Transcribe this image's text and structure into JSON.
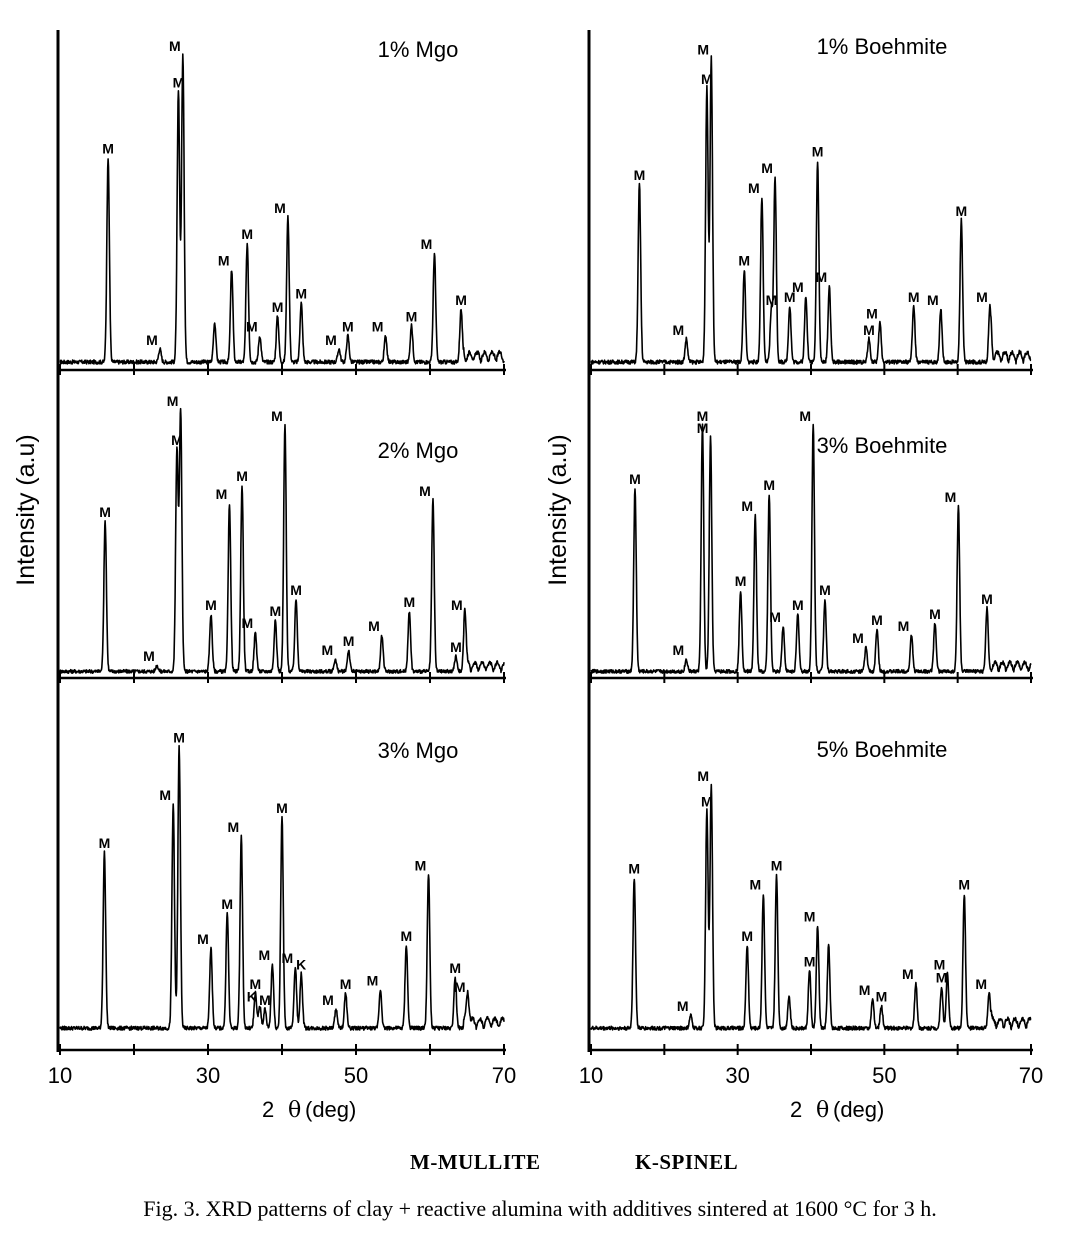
{
  "figure": {
    "ylabel": "Intensity  (a.u)",
    "xlabel_prefix": "2",
    "xlabel_symbol": "θ",
    "xlabel_unit": "(deg)",
    "x_ticks": [
      "10",
      "30",
      "50",
      "70"
    ],
    "legend": [
      "M-MULLITE",
      "K-SPINEL"
    ],
    "caption": "Fig. 3. XRD patterns of clay + reactive alumina with additives sintered at 1600 °C for 3 h."
  },
  "chart_data": [
    {
      "type": "line",
      "title": "1% Mgo",
      "xlim": [
        10,
        70
      ],
      "peaks": [
        {
          "x": 16.5,
          "h": 0.62,
          "label": "M"
        },
        {
          "x": 23.5,
          "h": 0.04,
          "label": "M"
        },
        {
          "x": 26.0,
          "h": 0.82,
          "label": "M"
        },
        {
          "x": 26.6,
          "h": 0.93,
          "label": "M"
        },
        {
          "x": 30.9,
          "h": 0.12,
          "label": ""
        },
        {
          "x": 33.2,
          "h": 0.28,
          "label": "M"
        },
        {
          "x": 35.3,
          "h": 0.36,
          "label": "M"
        },
        {
          "x": 37.0,
          "h": 0.08,
          "label": "M"
        },
        {
          "x": 39.4,
          "h": 0.14,
          "label": "M"
        },
        {
          "x": 40.8,
          "h": 0.44,
          "label": "M"
        },
        {
          "x": 42.6,
          "h": 0.18,
          "label": "M"
        },
        {
          "x": 47.7,
          "h": 0.04,
          "label": "M"
        },
        {
          "x": 48.9,
          "h": 0.08,
          "label": "M"
        },
        {
          "x": 54.0,
          "h": 0.08,
          "label": "M"
        },
        {
          "x": 57.5,
          "h": 0.11,
          "label": "M"
        },
        {
          "x": 60.6,
          "h": 0.33,
          "label": "M"
        },
        {
          "x": 64.2,
          "h": 0.16,
          "label": "M"
        }
      ]
    },
    {
      "type": "line",
      "title": "2% Mgo",
      "xlim": [
        10,
        70
      ],
      "peaks": [
        {
          "x": 16.1,
          "h": 0.5,
          "label": "M"
        },
        {
          "x": 23.1,
          "h": 0.02,
          "label": "M"
        },
        {
          "x": 25.8,
          "h": 0.74,
          "label": "M"
        },
        {
          "x": 26.3,
          "h": 0.87,
          "label": "M"
        },
        {
          "x": 30.4,
          "h": 0.19,
          "label": "M"
        },
        {
          "x": 32.9,
          "h": 0.56,
          "label": "M"
        },
        {
          "x": 34.6,
          "h": 0.62,
          "label": "M"
        },
        {
          "x": 36.4,
          "h": 0.13,
          "label": "M"
        },
        {
          "x": 39.1,
          "h": 0.17,
          "label": "M"
        },
        {
          "x": 40.4,
          "h": 0.82,
          "label": "M"
        },
        {
          "x": 41.9,
          "h": 0.24,
          "label": "M"
        },
        {
          "x": 47.2,
          "h": 0.04,
          "label": "M"
        },
        {
          "x": 49.0,
          "h": 0.07,
          "label": "M"
        },
        {
          "x": 53.5,
          "h": 0.12,
          "label": "M"
        },
        {
          "x": 57.2,
          "h": 0.2,
          "label": "M"
        },
        {
          "x": 60.4,
          "h": 0.57,
          "label": "M"
        },
        {
          "x": 63.5,
          "h": 0.05,
          "label": "M"
        },
        {
          "x": 64.7,
          "h": 0.19,
          "label": "M"
        }
      ]
    },
    {
      "type": "line",
      "title": "3% Mgo",
      "xlim": [
        10,
        70
      ],
      "peaks": [
        {
          "x": 16.0,
          "h": 0.55,
          "label": "M"
        },
        {
          "x": 25.3,
          "h": 0.7,
          "label": "M"
        },
        {
          "x": 26.1,
          "h": 0.88,
          "label": "M"
        },
        {
          "x": 30.4,
          "h": 0.25,
          "label": "M"
        },
        {
          "x": 32.6,
          "h": 0.36,
          "label": "M"
        },
        {
          "x": 34.5,
          "h": 0.6,
          "label": "M"
        },
        {
          "x": 36.4,
          "h": 0.11,
          "label": "M"
        },
        {
          "x": 37.0,
          "h": 0.07,
          "label": "K"
        },
        {
          "x": 37.7,
          "h": 0.06,
          "label": "M"
        },
        {
          "x": 38.7,
          "h": 0.2,
          "label": "M"
        },
        {
          "x": 40.0,
          "h": 0.66,
          "label": "M"
        },
        {
          "x": 41.8,
          "h": 0.19,
          "label": "M"
        },
        {
          "x": 42.6,
          "h": 0.17,
          "label": "K"
        },
        {
          "x": 47.3,
          "h": 0.06,
          "label": "M"
        },
        {
          "x": 48.6,
          "h": 0.11,
          "label": "M"
        },
        {
          "x": 53.3,
          "h": 0.12,
          "label": "M"
        },
        {
          "x": 56.8,
          "h": 0.26,
          "label": "M"
        },
        {
          "x": 59.8,
          "h": 0.48,
          "label": "M"
        },
        {
          "x": 63.4,
          "h": 0.16,
          "label": "M"
        },
        {
          "x": 65.1,
          "h": 0.1,
          "label": "M"
        }
      ]
    },
    {
      "type": "line",
      "title": "1% Boehmite",
      "xlim": [
        10,
        70
      ],
      "peaks": [
        {
          "x": 16.6,
          "h": 0.54,
          "label": "M"
        },
        {
          "x": 23.0,
          "h": 0.07,
          "label": "M"
        },
        {
          "x": 25.8,
          "h": 0.83,
          "label": "M"
        },
        {
          "x": 26.4,
          "h": 0.92,
          "label": "M"
        },
        {
          "x": 30.9,
          "h": 0.28,
          "label": "M"
        },
        {
          "x": 33.3,
          "h": 0.5,
          "label": "M"
        },
        {
          "x": 34.6,
          "h": 0.16,
          "label": "M"
        },
        {
          "x": 35.1,
          "h": 0.56,
          "label": "M"
        },
        {
          "x": 37.1,
          "h": 0.17,
          "label": "M"
        },
        {
          "x": 39.3,
          "h": 0.2,
          "label": "M"
        },
        {
          "x": 40.9,
          "h": 0.61,
          "label": "M"
        },
        {
          "x": 42.5,
          "h": 0.23,
          "label": "M"
        },
        {
          "x": 47.9,
          "h": 0.07,
          "label": "M"
        },
        {
          "x": 49.4,
          "h": 0.12,
          "label": "M"
        },
        {
          "x": 54.0,
          "h": 0.17,
          "label": "M"
        },
        {
          "x": 57.7,
          "h": 0.16,
          "label": "M"
        },
        {
          "x": 60.5,
          "h": 0.43,
          "label": "M"
        },
        {
          "x": 64.4,
          "h": 0.17,
          "label": "M"
        }
      ]
    },
    {
      "type": "line",
      "title": "3% Boehmite",
      "xlim": [
        10,
        70
      ],
      "peaks": [
        {
          "x": 16.0,
          "h": 0.61,
          "label": "M"
        },
        {
          "x": 23.0,
          "h": 0.04,
          "label": "M"
        },
        {
          "x": 25.2,
          "h": 0.82,
          "label": "M"
        },
        {
          "x": 26.3,
          "h": 0.78,
          "label": "M"
        },
        {
          "x": 30.4,
          "h": 0.27,
          "label": "M"
        },
        {
          "x": 32.4,
          "h": 0.52,
          "label": "M"
        },
        {
          "x": 34.3,
          "h": 0.59,
          "label": "M"
        },
        {
          "x": 36.2,
          "h": 0.15,
          "label": "M"
        },
        {
          "x": 38.2,
          "h": 0.19,
          "label": "M"
        },
        {
          "x": 40.3,
          "h": 0.82,
          "label": "M"
        },
        {
          "x": 41.9,
          "h": 0.24,
          "label": "M"
        },
        {
          "x": 47.5,
          "h": 0.08,
          "label": "M"
        },
        {
          "x": 49.0,
          "h": 0.14,
          "label": "M"
        },
        {
          "x": 53.7,
          "h": 0.12,
          "label": "M"
        },
        {
          "x": 56.9,
          "h": 0.16,
          "label": "M"
        },
        {
          "x": 60.1,
          "h": 0.55,
          "label": "M"
        },
        {
          "x": 64.0,
          "h": 0.21,
          "label": "M"
        }
      ]
    },
    {
      "type": "line",
      "title": "5% Boehmite",
      "xlim": [
        10,
        70
      ],
      "peaks": [
        {
          "x": 15.9,
          "h": 0.47,
          "label": "M"
        },
        {
          "x": 23.6,
          "h": 0.04,
          "label": "M"
        },
        {
          "x": 25.8,
          "h": 0.68,
          "label": "M"
        },
        {
          "x": 26.4,
          "h": 0.76,
          "label": "M"
        },
        {
          "x": 31.3,
          "h": 0.26,
          "label": "M"
        },
        {
          "x": 33.5,
          "h": 0.42,
          "label": "M"
        },
        {
          "x": 35.3,
          "h": 0.48,
          "label": "M"
        },
        {
          "x": 37.0,
          "h": 0.1,
          "label": ""
        },
        {
          "x": 39.8,
          "h": 0.18,
          "label": "M"
        },
        {
          "x": 40.9,
          "h": 0.32,
          "label": "M"
        },
        {
          "x": 42.4,
          "h": 0.26,
          "label": ""
        },
        {
          "x": 48.4,
          "h": 0.09,
          "label": "M"
        },
        {
          "x": 49.6,
          "h": 0.07,
          "label": "M"
        },
        {
          "x": 54.3,
          "h": 0.14,
          "label": "M"
        },
        {
          "x": 57.8,
          "h": 0.13,
          "label": "M"
        },
        {
          "x": 58.6,
          "h": 0.17,
          "label": "M"
        },
        {
          "x": 60.9,
          "h": 0.42,
          "label": "M"
        },
        {
          "x": 64.3,
          "h": 0.11,
          "label": "M"
        }
      ]
    }
  ]
}
